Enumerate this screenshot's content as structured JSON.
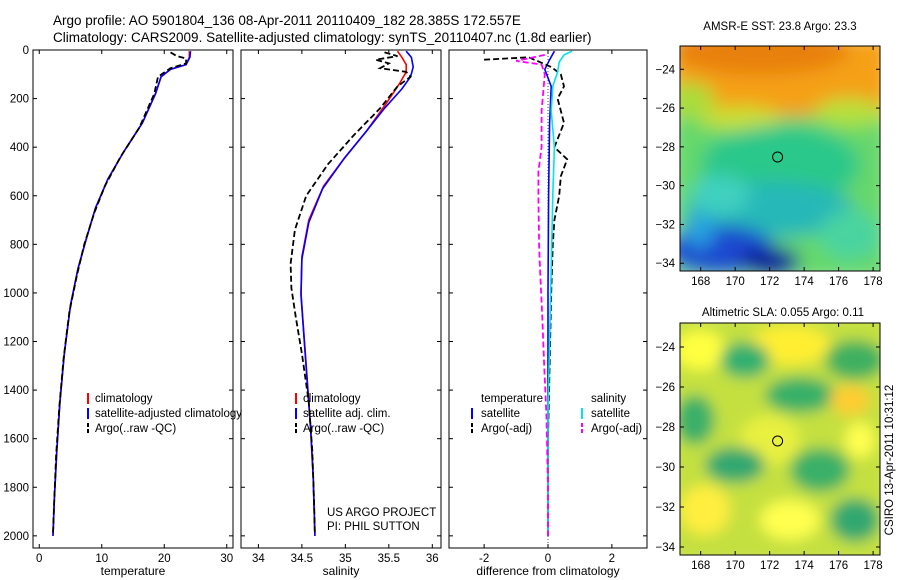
{
  "header": {
    "line1": "Argo profile: AO 5901804_136 08-Apr-2011 20110409_182 28.385S 172.557E",
    "line2": "Climatology: CARS2009. Satellite-adjusted climatology: synTS_20110407.nc (1.8d earlier)"
  },
  "credit": {
    "line1": "US ARGO PROJECT",
    "line2": "PI: PHIL SUTTON",
    "vertical": "CSIRO 13-Apr-2011 10:31:12"
  },
  "colors": {
    "climatology": "#ff0000",
    "satellite": "#0000ff",
    "argo": "#000000",
    "sat_salinity": "#00e5e5",
    "argo_salinity": "#ff00ff"
  },
  "chart_data": [
    {
      "type": "line",
      "xlabel": "temperature",
      "xlim": [
        -1,
        31
      ],
      "xticks": [
        0,
        10,
        20,
        30
      ],
      "ylim": [
        0,
        2050
      ],
      "yticks": [
        0,
        200,
        400,
        600,
        800,
        1000,
        1200,
        1400,
        1600,
        1800,
        2000
      ],
      "yreversed": true,
      "legend": {
        "placement": "lower-right",
        "entries": [
          "climatology",
          "satellite-adjusted climatology",
          "Argo(..raw -QC)"
        ]
      },
      "series": [
        {
          "name": "climatology",
          "style": "solid",
          "color": "#ff0000",
          "points": [
            [
              24,
              5
            ],
            [
              24,
              30
            ],
            [
              23.5,
              60
            ],
            [
              21,
              80
            ],
            [
              19.5,
              110
            ],
            [
              18.6,
              180
            ],
            [
              16.5,
              300
            ],
            [
              13.5,
              420
            ],
            [
              11,
              530
            ],
            [
              9,
              650
            ],
            [
              7.5,
              780
            ],
            [
              6.2,
              900
            ],
            [
              5,
              1050
            ],
            [
              4,
              1250
            ],
            [
              3.3,
              1450
            ],
            [
              2.8,
              1650
            ],
            [
              2.4,
              1850
            ],
            [
              2.2,
              2000
            ]
          ]
        },
        {
          "name": "satellite-adjusted climatology",
          "style": "solid",
          "color": "#0000ff",
          "points": [
            [
              24.2,
              5
            ],
            [
              24.1,
              30
            ],
            [
              23.5,
              60
            ],
            [
              21,
              80
            ],
            [
              19.5,
              110
            ],
            [
              18.6,
              180
            ],
            [
              16.5,
              300
            ],
            [
              13.5,
              420
            ],
            [
              11,
              530
            ],
            [
              9,
              650
            ],
            [
              7.5,
              780
            ],
            [
              6.2,
              900
            ],
            [
              5,
              1050
            ],
            [
              4,
              1250
            ],
            [
              3.3,
              1450
            ],
            [
              2.8,
              1650
            ],
            [
              2.4,
              1850
            ],
            [
              2.2,
              2000
            ]
          ]
        },
        {
          "name": "Argo(..raw -QC)",
          "style": "dashed",
          "color": "#000000",
          "points": [
            [
              21,
              10
            ],
            [
              22,
              25
            ],
            [
              23.5,
              35
            ],
            [
              23.5,
              55
            ],
            [
              21,
              75
            ],
            [
              19,
              110
            ],
            [
              18.4,
              180
            ],
            [
              16,
              320
            ],
            [
              13,
              440
            ],
            [
              10.5,
              560
            ],
            [
              8.8,
              670
            ],
            [
              7.2,
              800
            ],
            [
              6,
              930
            ],
            [
              4.8,
              1080
            ],
            [
              3.9,
              1270
            ],
            [
              3.2,
              1470
            ],
            [
              2.7,
              1670
            ],
            [
              2.4,
              1850
            ],
            [
              2.2,
              1990
            ]
          ]
        }
      ]
    },
    {
      "type": "line",
      "xlabel": "salinity",
      "xlim": [
        33.8,
        36.1
      ],
      "xticks": [
        34,
        34.5,
        35,
        35.5,
        36
      ],
      "ylim": [
        0,
        2050
      ],
      "yreversed": true,
      "legend": {
        "placement": "lower-right",
        "entries": [
          "climatology",
          "satellite adj. clim.",
          "Argo(..raw -QC)"
        ]
      },
      "series": [
        {
          "name": "climatology",
          "style": "solid",
          "color": "#ff0000",
          "points": [
            [
              35.6,
              5
            ],
            [
              35.65,
              30
            ],
            [
              35.7,
              60
            ],
            [
              35.7,
              90
            ],
            [
              35.62,
              140
            ],
            [
              35.45,
              230
            ],
            [
              35.25,
              330
            ],
            [
              35,
              440
            ],
            [
              34.75,
              560
            ],
            [
              34.58,
              700
            ],
            [
              34.5,
              850
            ],
            [
              34.49,
              1000
            ],
            [
              34.52,
              1150
            ],
            [
              34.56,
              1350
            ],
            [
              34.6,
              1550
            ],
            [
              34.63,
              1750
            ],
            [
              34.65,
              2000
            ]
          ]
        },
        {
          "name": "satellite adj. clim.",
          "style": "solid",
          "color": "#0000ff",
          "points": [
            [
              35.7,
              5
            ],
            [
              35.76,
              30
            ],
            [
              35.78,
              70
            ],
            [
              35.75,
              110
            ],
            [
              35.65,
              160
            ],
            [
              35.45,
              240
            ],
            [
              35.23,
              340
            ],
            [
              34.98,
              450
            ],
            [
              34.74,
              570
            ],
            [
              34.58,
              710
            ],
            [
              34.5,
              860
            ],
            [
              34.49,
              1010
            ],
            [
              34.52,
              1160
            ],
            [
              34.56,
              1360
            ],
            [
              34.6,
              1560
            ],
            [
              34.63,
              1760
            ],
            [
              34.65,
              2000
            ]
          ]
        },
        {
          "name": "Argo(..raw -QC)",
          "style": "dashed",
          "color": "#000000",
          "points": [
            [
              35.45,
              10
            ],
            [
              35.6,
              25
            ],
            [
              35.35,
              40
            ],
            [
              35.5,
              55
            ],
            [
              35.4,
              75
            ],
            [
              35.7,
              90
            ],
            [
              35.75,
              110
            ],
            [
              35.6,
              150
            ],
            [
              35.4,
              240
            ],
            [
              35.1,
              350
            ],
            [
              34.8,
              470
            ],
            [
              34.55,
              600
            ],
            [
              34.42,
              740
            ],
            [
              34.37,
              880
            ],
            [
              34.38,
              980
            ],
            [
              34.43,
              1100
            ],
            [
              34.5,
              1250
            ],
            [
              34.58,
              1450
            ],
            [
              34.62,
              1650
            ],
            [
              34.64,
              1850
            ],
            [
              34.65,
              1990
            ]
          ]
        }
      ]
    },
    {
      "type": "line",
      "xlabel": "difference from climatology",
      "xlim": [
        -3.1,
        3.1
      ],
      "xticks": [
        -2,
        0,
        2
      ],
      "ylim": [
        0,
        2050
      ],
      "yreversed": true,
      "legend": {
        "placement": "lower",
        "columns": [
          [
            "temperature",
            "satellite",
            "Argo(-adj)"
          ],
          [
            "salinity",
            "satellite",
            "Argo(-adj)"
          ]
        ]
      },
      "series": [
        {
          "name": "satellite",
          "group": "temperature",
          "style": "solid",
          "color": "#0000ff",
          "points": [
            [
              0.2,
              5
            ],
            [
              0.05,
              40
            ],
            [
              -0.1,
              80
            ],
            [
              0.1,
              150
            ],
            [
              0.05,
              300
            ],
            [
              0.02,
              600
            ],
            [
              0,
              1000
            ],
            [
              0,
              2000
            ]
          ]
        },
        {
          "name": "Argo(-adj)",
          "group": "temperature",
          "style": "dashed",
          "color": "#000000",
          "points": [
            [
              -2,
              40
            ],
            [
              -0.6,
              30
            ],
            [
              0.1,
              70
            ],
            [
              0.4,
              100
            ],
            [
              0.5,
              150
            ],
            [
              0.3,
              200
            ],
            [
              0.5,
              300
            ],
            [
              0.2,
              400
            ],
            [
              0.6,
              450
            ],
            [
              0.4,
              520
            ],
            [
              0.35,
              600
            ],
            [
              0.2,
              700
            ],
            [
              0.15,
              800
            ],
            [
              0.1,
              1000
            ],
            [
              0.05,
              1300
            ],
            [
              0,
              1600
            ],
            [
              0,
              2000
            ]
          ]
        },
        {
          "name": "satellite",
          "group": "salinity",
          "style": "solid",
          "color": "#00e5e5",
          "points": [
            [
              0.75,
              5
            ],
            [
              0.5,
              20
            ],
            [
              0.35,
              50
            ],
            [
              0.3,
              90
            ],
            [
              0.15,
              150
            ],
            [
              0.1,
              250
            ],
            [
              0.2,
              400
            ],
            [
              0.15,
              600
            ],
            [
              0.1,
              900
            ],
            [
              0.05,
              1200
            ],
            [
              0,
              1500
            ],
            [
              0,
              2000
            ]
          ]
        },
        {
          "name": "Argo(-adj)",
          "group": "salinity",
          "style": "dashed",
          "color": "#ff00ff",
          "points": [
            [
              -0.1,
              20
            ],
            [
              -1,
              45
            ],
            [
              -0.2,
              60
            ],
            [
              -0.1,
              100
            ],
            [
              -0.2,
              250
            ],
            [
              -0.2,
              400
            ],
            [
              -0.3,
              500
            ],
            [
              -0.3,
              600
            ],
            [
              -0.28,
              800
            ],
            [
              -0.25,
              900
            ],
            [
              -0.18,
              1100
            ],
            [
              -0.12,
              1300
            ],
            [
              -0.05,
              1500
            ],
            [
              0,
              1800
            ],
            [
              0,
              2000
            ]
          ]
        }
      ]
    },
    {
      "type": "heatmap",
      "title": "AMSR-E SST: 23.8 Argo: 23.3",
      "xlim": [
        166.8,
        178.4
      ],
      "ylim": [
        -34.4,
        -22.8
      ],
      "xticks": [
        168,
        170,
        172,
        174,
        176,
        178
      ],
      "yticks": [
        -24,
        -26,
        -28,
        -30,
        -32,
        -34
      ],
      "marker": {
        "lon": 172.557,
        "lat": -28.385
      },
      "colormap": "jet"
    },
    {
      "type": "heatmap",
      "title": "Altimetric SLA: 0.055 Argo: 0.11",
      "xlim": [
        166.8,
        178.4
      ],
      "ylim": [
        -34.4,
        -22.8
      ],
      "xticks": [
        168,
        170,
        172,
        174,
        176,
        178
      ],
      "yticks": [
        -24,
        -26,
        -28,
        -30,
        -32,
        -34
      ],
      "marker": {
        "lon": 172.557,
        "lat": -28.385
      },
      "colormap": "jet"
    }
  ]
}
